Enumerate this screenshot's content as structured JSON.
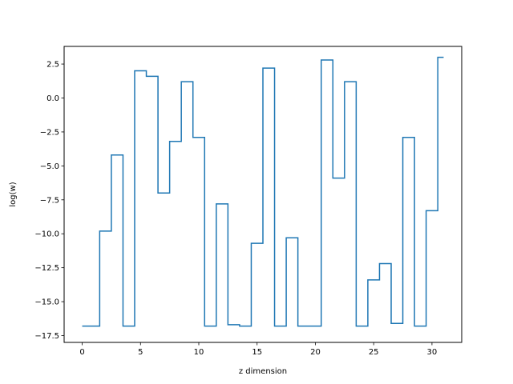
{
  "chart_data": {
    "type": "line",
    "drawstyle": "steps-mid",
    "title": "",
    "xlabel": "z dimension",
    "ylabel": "log(w)",
    "xlim": [
      -1.55,
      32.55
    ],
    "ylim": [
      -18.0,
      3.8
    ],
    "xticks": [
      0,
      5,
      10,
      15,
      20,
      25,
      30
    ],
    "yticks": [
      -17.5,
      -15.0,
      -12.5,
      -10.0,
      -7.5,
      -5.0,
      -2.5,
      0.0,
      2.5
    ],
    "ytick_labels": [
      "−17.5",
      "−15.0",
      "−12.5",
      "−10.0",
      "−7.5",
      "−5.0",
      "−2.5",
      "0.0",
      "2.5"
    ],
    "grid": false,
    "color": "#1f77b4",
    "series": [
      {
        "x": [
          0,
          1,
          2,
          3,
          4,
          5,
          6,
          7,
          8,
          9,
          10,
          11,
          12,
          13,
          14,
          15,
          16,
          17,
          18,
          19,
          20,
          21,
          22,
          23,
          24,
          25,
          26,
          27,
          28,
          29,
          30,
          31
        ],
        "values": [
          -16.8,
          -16.8,
          -9.8,
          -4.2,
          -16.8,
          2.0,
          1.6,
          -7.0,
          -3.2,
          1.2,
          -2.9,
          -16.8,
          -7.8,
          -16.7,
          -16.8,
          -10.7,
          2.2,
          -16.8,
          -10.3,
          -16.8,
          -16.8,
          2.8,
          -5.9,
          1.2,
          -16.8,
          -13.4,
          -12.2,
          -16.6,
          -2.9,
          -16.8,
          -8.3,
          3.0
        ]
      }
    ]
  }
}
